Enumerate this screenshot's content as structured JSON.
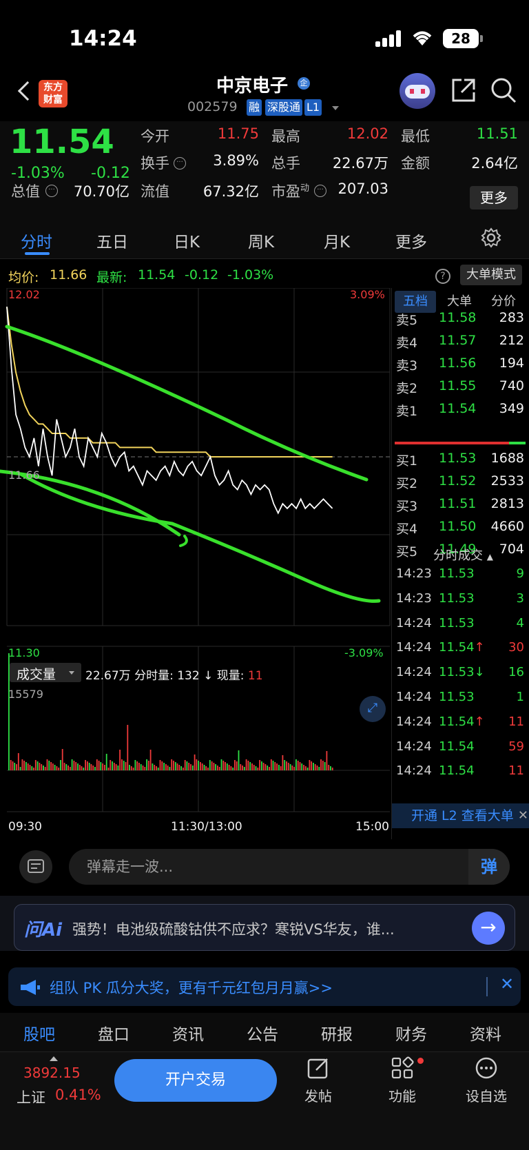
{
  "status": {
    "time": "14:24",
    "battery": "28"
  },
  "header": {
    "logo_line1": "东方",
    "logo_line2": "财富",
    "stock_name": "中京电子",
    "badge": "企",
    "stock_code": "002579",
    "tags": [
      "融",
      "深股通",
      "L1"
    ]
  },
  "quote": {
    "price": "11.54",
    "pct": "-1.03%",
    "chg": "-0.12",
    "fields": [
      {
        "label": "今开",
        "value": "11.75",
        "color": "#f03a3a"
      },
      {
        "label": "最高",
        "value": "12.02",
        "color": "#f03a3a"
      },
      {
        "label": "最低",
        "value": "11.51",
        "color": "#2ee045"
      },
      {
        "label": "换手",
        "value": "3.89%",
        "color": "#f2f2f2"
      },
      {
        "label": "总手",
        "value": "22.67万",
        "color": "#f2f2f2"
      },
      {
        "label": "金额",
        "value": "2.64亿",
        "color": "#f2f2f2"
      },
      {
        "label": "总值",
        "value": "70.70亿",
        "color": "#f2f2f2"
      },
      {
        "label": "流值",
        "value": "67.32亿",
        "color": "#f2f2f2"
      },
      {
        "label": "市盈",
        "label_sup": "动",
        "value": "207.03",
        "color": "#f2f2f2"
      }
    ],
    "more": "更多"
  },
  "tabs": [
    "分时",
    "五日",
    "日K",
    "周K",
    "月K",
    "更多"
  ],
  "avg": {
    "avg_label": "均价:",
    "avg_value": "11.66",
    "latest_label": "最新:",
    "latest_value": "11.54",
    "latest_chg": "-0.12",
    "latest_pct": "-1.03%",
    "help": "?",
    "mode": "大单模式"
  },
  "chart_data": {
    "type": "line",
    "price_max": "12.02",
    "price_min": "11.30",
    "pct_max": "3.09%",
    "pct_min": "-3.09%",
    "mid_price": "11.66",
    "ylim": [
      11.3,
      12.02
    ],
    "price": [
      11.98,
      11.85,
      11.75,
      11.72,
      11.68,
      11.66,
      11.7,
      11.64,
      11.72,
      11.66,
      11.62,
      11.74,
      11.7,
      11.66,
      11.68,
      11.72,
      11.66,
      11.64,
      11.7,
      11.68,
      11.66,
      11.71,
      11.69,
      11.66,
      11.64,
      11.66,
      11.67,
      11.63,
      11.64,
      11.62,
      11.6,
      11.63,
      11.62,
      11.61,
      11.63,
      11.64,
      11.62,
      11.65,
      11.63,
      11.62,
      11.64,
      11.65,
      11.63,
      11.62,
      11.64,
      11.66,
      11.62,
      11.6,
      11.61,
      11.63,
      11.6,
      11.59,
      11.61,
      11.6,
      11.58,
      11.6,
      11.59,
      11.6,
      11.59,
      11.56,
      11.54,
      11.56,
      11.55,
      11.56,
      11.55,
      11.57,
      11.55,
      11.56,
      11.55,
      11.56,
      11.57,
      11.56,
      11.55
    ],
    "avg_line": [
      11.98,
      11.9,
      11.84,
      11.8,
      11.77,
      11.75,
      11.74,
      11.73,
      11.73,
      11.72,
      11.71,
      11.71,
      11.71,
      11.71,
      11.7,
      11.7,
      11.7,
      11.7,
      11.7,
      11.69,
      11.69,
      11.69,
      11.69,
      11.69,
      11.69,
      11.68,
      11.68,
      11.68,
      11.68,
      11.68,
      11.68,
      11.68,
      11.68,
      11.67,
      11.67,
      11.67,
      11.67,
      11.67,
      11.67,
      11.67,
      11.67,
      11.67,
      11.67,
      11.67,
      11.67,
      11.66,
      11.66,
      11.66,
      11.66,
      11.66,
      11.66,
      11.66,
      11.66,
      11.66,
      11.66,
      11.66,
      11.66,
      11.66,
      11.66,
      11.66,
      11.66,
      11.66,
      11.66,
      11.66,
      11.66,
      11.66,
      11.66,
      11.66,
      11.66,
      11.66,
      11.66,
      11.66,
      11.66
    ],
    "volume_label": "成交量",
    "volume_total": "22.67万",
    "minute_vol_label": "分时量:",
    "minute_vol": "132",
    "current_vol_label": "现量:",
    "current_vol": "11",
    "vol_max": "15579",
    "x_labels": [
      "09:30",
      "11:30/13:00",
      "15:00"
    ]
  },
  "orderbook": {
    "tabs": [
      "五档",
      "大单",
      "分价"
    ],
    "asks": [
      {
        "label": "卖5",
        "price": "11.58",
        "vol": "283"
      },
      {
        "label": "卖4",
        "price": "11.57",
        "vol": "212"
      },
      {
        "label": "卖3",
        "price": "11.56",
        "vol": "194"
      },
      {
        "label": "卖2",
        "price": "11.55",
        "vol": "740"
      },
      {
        "label": "卖1",
        "price": "11.54",
        "vol": "349"
      }
    ],
    "bids": [
      {
        "label": "买1",
        "price": "11.53",
        "vol": "1688"
      },
      {
        "label": "买2",
        "price": "11.52",
        "vol": "2533"
      },
      {
        "label": "买3",
        "price": "11.51",
        "vol": "2813"
      },
      {
        "label": "买4",
        "price": "11.50",
        "vol": "4660"
      },
      {
        "label": "买5",
        "price": "11.49",
        "vol": "704"
      }
    ]
  },
  "trades": {
    "title": "分时成交",
    "rows": [
      {
        "time": "14:23",
        "price": "11.53",
        "arrow": "",
        "vol": "9",
        "color": "#2ee045"
      },
      {
        "time": "14:23",
        "price": "11.53",
        "arrow": "",
        "vol": "3",
        "color": "#2ee045"
      },
      {
        "time": "14:24",
        "price": "11.53",
        "arrow": "",
        "vol": "4",
        "color": "#2ee045"
      },
      {
        "time": "14:24",
        "price": "11.54",
        "arrow": "↑",
        "vol": "30",
        "color": "#f03a3a"
      },
      {
        "time": "14:24",
        "price": "11.53",
        "arrow": "↓",
        "vol": "16",
        "color": "#2ee045"
      },
      {
        "time": "14:24",
        "price": "11.53",
        "arrow": "",
        "vol": "1",
        "color": "#2ee045"
      },
      {
        "time": "14:24",
        "price": "11.54",
        "arrow": "↑",
        "vol": "11",
        "color": "#f03a3a"
      },
      {
        "time": "14:24",
        "price": "11.54",
        "arrow": "",
        "vol": "59",
        "color": "#f03a3a"
      },
      {
        "time": "14:24",
        "price": "11.54",
        "arrow": "",
        "vol": "11",
        "color": "#f03a3a"
      }
    ],
    "l2": "开通 L2 查看大单",
    "close": "✕"
  },
  "danmu": {
    "placeholder": "弹幕走一波...",
    "button": "弹"
  },
  "ai": {
    "logo": "问Ai",
    "text": "强势！电池级硫酸钴供不应求？寒锐VS华友，谁..."
  },
  "promo": {
    "text": "组队 PK 瓜分大奖，更有千元红包月月赢>>",
    "close": "✕"
  },
  "bottom_tabs": [
    "股吧",
    "盘口",
    "资讯",
    "公告",
    "研报",
    "财务",
    "资料"
  ],
  "bottom_bar": {
    "index_value": "3892.15",
    "index_name": "上证",
    "index_pct": "0.41%",
    "open_button": "开户交易",
    "actions": [
      "发帖",
      "功能",
      "设自选"
    ]
  }
}
